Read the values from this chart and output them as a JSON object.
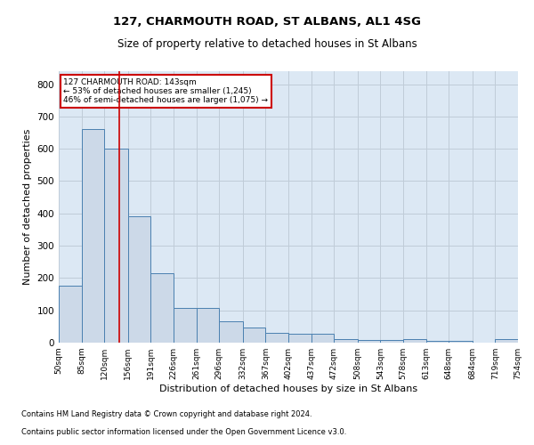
{
  "title1": "127, CHARMOUTH ROAD, ST ALBANS, AL1 4SG",
  "title2": "Size of property relative to detached houses in St Albans",
  "xlabel": "Distribution of detached houses by size in St Albans",
  "ylabel": "Number of detached properties",
  "footnote1": "Contains HM Land Registry data © Crown copyright and database right 2024.",
  "footnote2": "Contains public sector information licensed under the Open Government Licence v3.0.",
  "annotation_line1": "127 CHARMOUTH ROAD: 143sqm",
  "annotation_line2": "← 53% of detached houses are smaller (1,245)",
  "annotation_line3": "46% of semi-detached houses are larger (1,075) →",
  "property_size": 143,
  "bar_color": "#ccd9e8",
  "bar_edge_color": "#4a80b0",
  "annotation_line_color": "#cc0000",
  "annotation_box_edge_color": "#cc0000",
  "grid_color": "#c0ccd8",
  "background_color": "#dce8f4",
  "bin_edges": [
    50,
    85,
    120,
    156,
    191,
    226,
    261,
    296,
    332,
    367,
    402,
    437,
    472,
    508,
    543,
    578,
    613,
    648,
    684,
    719,
    754
  ],
  "bin_heights": [
    175,
    660,
    600,
    390,
    215,
    107,
    107,
    65,
    48,
    30,
    28,
    28,
    10,
    8,
    8,
    10,
    5,
    5,
    0,
    10
  ],
  "ylim": [
    0,
    840
  ],
  "yticks": [
    0,
    100,
    200,
    300,
    400,
    500,
    600,
    700,
    800
  ]
}
